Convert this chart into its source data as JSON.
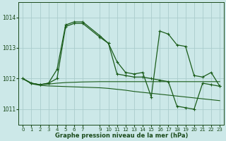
{
  "bg_color": "#cce8e8",
  "grid_color": "#aacccc",
  "line_color": "#1a5c1a",
  "title": "Graphe pression niveau de la mer (hPa)",
  "xlim": [
    -0.5,
    23.5
  ],
  "ylim": [
    1010.5,
    1014.5
  ],
  "yticks": [
    1011,
    1012,
    1013,
    1014
  ],
  "xticks": [
    0,
    1,
    2,
    3,
    4,
    5,
    6,
    7,
    9,
    10,
    11,
    12,
    13,
    14,
    15,
    16,
    17,
    18,
    19,
    20,
    21,
    22,
    23
  ],
  "line1_x": [
    0,
    1,
    2,
    3,
    4,
    5,
    6,
    7,
    9,
    10,
    11,
    12,
    13,
    14,
    15,
    16,
    17,
    18,
    19,
    20,
    21,
    22,
    23
  ],
  "line1_y": [
    1012.0,
    1011.85,
    1011.8,
    1011.85,
    1012.3,
    1013.75,
    1013.85,
    1013.85,
    1013.4,
    1013.15,
    1012.55,
    1012.2,
    1012.15,
    1012.2,
    1011.4,
    1013.55,
    1013.45,
    1013.1,
    1013.05,
    1012.1,
    1012.05,
    1012.2,
    1011.75
  ],
  "line2_x": [
    0,
    1,
    2,
    3,
    4,
    5,
    6,
    7,
    9,
    10,
    11,
    12,
    13,
    14,
    15,
    16,
    17,
    18,
    19,
    20,
    21,
    22,
    23
  ],
  "line2_y": [
    1012.0,
    1011.85,
    1011.8,
    1011.85,
    1012.0,
    1013.7,
    1013.8,
    1013.8,
    1013.35,
    1013.15,
    1012.15,
    1012.1,
    1012.05,
    1012.05,
    1012.0,
    1011.95,
    1011.9,
    1011.1,
    1011.05,
    1011.0,
    1011.85,
    1011.8,
    1011.75
  ],
  "line3_x": [
    0,
    1,
    2,
    3,
    4,
    5,
    6,
    7,
    9,
    10,
    11,
    12,
    13,
    14,
    15,
    16,
    17,
    18,
    19,
    20,
    21,
    22,
    23
  ],
  "line3_y": [
    1012.0,
    1011.85,
    1011.8,
    1011.82,
    1011.85,
    1011.87,
    1011.88,
    1011.89,
    1011.9,
    1011.9,
    1011.9,
    1011.9,
    1011.9,
    1011.9,
    1011.9,
    1011.9,
    1011.9,
    1011.9,
    1011.9,
    1011.9,
    1011.9,
    1011.9,
    1011.9
  ],
  "line4_x": [
    0,
    1,
    2,
    3,
    4,
    5,
    6,
    7,
    9,
    10,
    11,
    12,
    13,
    14,
    15,
    16,
    17,
    18,
    19,
    20,
    21,
    22,
    23
  ],
  "line4_y": [
    1012.0,
    1011.83,
    1011.78,
    1011.76,
    1011.75,
    1011.74,
    1011.73,
    1011.72,
    1011.7,
    1011.68,
    1011.65,
    1011.62,
    1011.58,
    1011.55,
    1011.52,
    1011.49,
    1011.46,
    1011.43,
    1011.4,
    1011.37,
    1011.34,
    1011.31,
    1011.28
  ]
}
